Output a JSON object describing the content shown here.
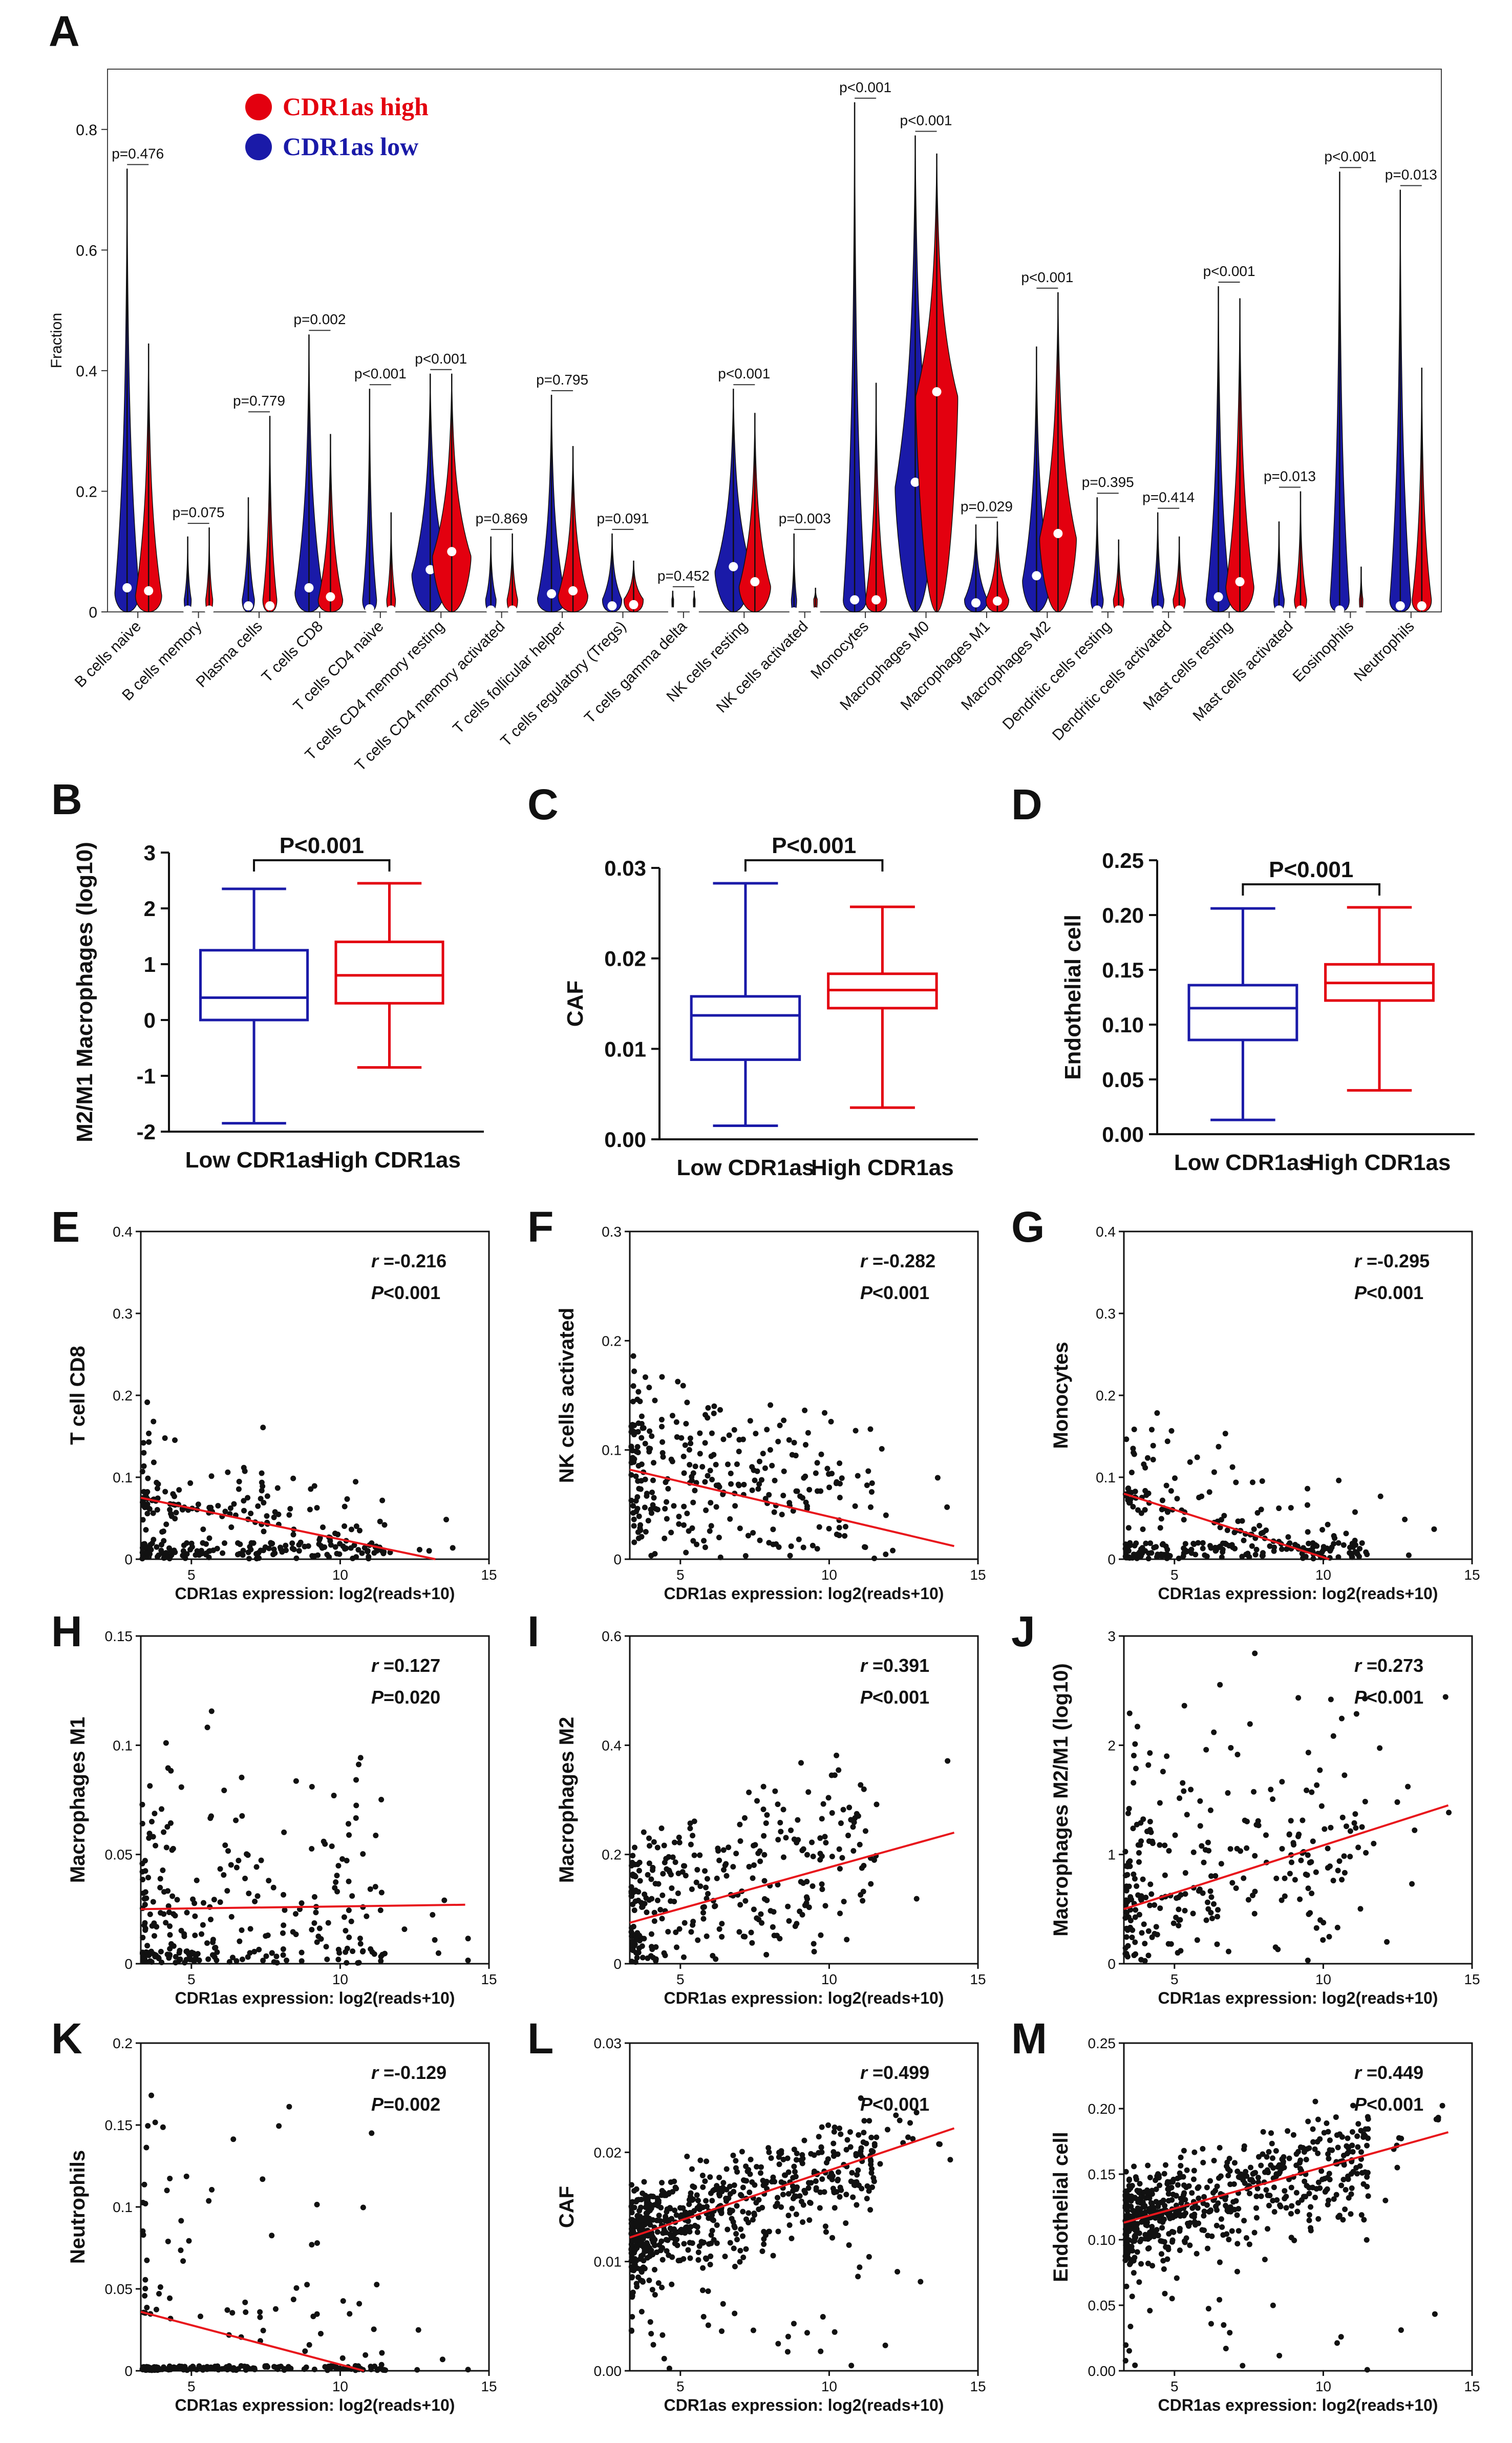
{
  "colors": {
    "high": "#e3000f",
    "low": "#1a1aa8",
    "fit": "#e8161c",
    "axis": "#111111"
  },
  "chart_data": [
    {
      "id": "A",
      "letter": "A",
      "type": "violin",
      "ylabel": "Fraction",
      "ylim": [
        0,
        0.9
      ],
      "yticks": [
        0,
        0.2,
        0.4,
        0.6,
        0.8
      ],
      "legend": [
        {
          "name": "CDR1as high",
          "color": "#e3000f"
        },
        {
          "name": "CDR1as low",
          "color": "#1a1aa8"
        }
      ],
      "categories": [
        {
          "name": "B cells naive",
          "pval": "p=0.476",
          "low": {
            "max": 0.735,
            "median": 0.04,
            "spread": 0.7
          },
          "high": {
            "max": 0.445,
            "median": 0.035,
            "spread": 0.75
          }
        },
        {
          "name": "B cells memory",
          "pval": "p=0.075",
          "low": {
            "max": 0.125,
            "median": 0.003,
            "spread": 0.2
          },
          "high": {
            "max": 0.14,
            "median": 0.003,
            "spread": 0.2
          }
        },
        {
          "name": "Plasma cells",
          "pval": "p=0.779",
          "low": {
            "max": 0.19,
            "median": 0.01,
            "spread": 0.35
          },
          "high": {
            "max": 0.325,
            "median": 0.01,
            "spread": 0.4
          }
        },
        {
          "name": "T cells CD8",
          "pval": "p=0.002",
          "low": {
            "max": 0.46,
            "median": 0.04,
            "spread": 0.8
          },
          "high": {
            "max": 0.295,
            "median": 0.025,
            "spread": 0.7
          }
        },
        {
          "name": "T cells CD4 naive",
          "pval": "p<0.001",
          "low": {
            "max": 0.37,
            "median": 0.005,
            "spread": 0.4
          },
          "high": {
            "max": 0.165,
            "median": 0.003,
            "spread": 0.25
          }
        },
        {
          "name": "T cells CD4 memory resting",
          "pval": "p<0.001",
          "low": {
            "max": 0.395,
            "median": 0.07,
            "spread": 1.05
          },
          "high": {
            "max": 0.395,
            "median": 0.1,
            "spread": 1.1
          }
        },
        {
          "name": "T cells CD4 memory activated",
          "pval": "p=0.869",
          "low": {
            "max": 0.125,
            "median": 0.003,
            "spread": 0.3
          },
          "high": {
            "max": 0.13,
            "median": 0.003,
            "spread": 0.3
          }
        },
        {
          "name": "T cells follicular helper",
          "pval": "p=0.795",
          "low": {
            "max": 0.36,
            "median": 0.03,
            "spread": 0.8
          },
          "high": {
            "max": 0.275,
            "median": 0.035,
            "spread": 0.85
          }
        },
        {
          "name": "T cells regulatory (Tregs)",
          "pval": "p=0.091",
          "low": {
            "max": 0.13,
            "median": 0.01,
            "spread": 0.55
          },
          "high": {
            "max": 0.085,
            "median": 0.012,
            "spread": 0.55
          }
        },
        {
          "name": "T cells gamma delta",
          "pval": "p=0.452",
          "low": {
            "max": 0.035,
            "median": 0.0,
            "spread": 0.05
          },
          "high": {
            "max": 0.035,
            "median": 0.0,
            "spread": 0.05
          }
        },
        {
          "name": "NK cells resting",
          "pval": "p<0.001",
          "low": {
            "max": 0.37,
            "median": 0.075,
            "spread": 1.05
          },
          "high": {
            "max": 0.33,
            "median": 0.05,
            "spread": 0.9
          }
        },
        {
          "name": "NK cells activated",
          "pval": "p=0.003",
          "low": {
            "max": 0.13,
            "median": 0.0,
            "spread": 0.15
          },
          "high": {
            "max": 0.04,
            "median": 0.0,
            "spread": 0.1
          }
        },
        {
          "name": "Monocytes",
          "pval": "p<0.001",
          "low": {
            "max": 0.845,
            "median": 0.02,
            "spread": 0.65
          },
          "high": {
            "max": 0.38,
            "median": 0.02,
            "spread": 0.6
          }
        },
        {
          "name": "Macrophages M0",
          "pval": "p<0.001",
          "low": {
            "max": 0.79,
            "median": 0.215,
            "spread": 1.15
          },
          "high": {
            "max": 0.76,
            "median": 0.365,
            "spread": 1.2
          }
        },
        {
          "name": "Macrophages M1",
          "pval": "p=0.029",
          "low": {
            "max": 0.145,
            "median": 0.015,
            "spread": 0.65
          },
          "high": {
            "max": 0.15,
            "median": 0.018,
            "spread": 0.65
          }
        },
        {
          "name": "Macrophages M2",
          "pval": "p<0.001",
          "low": {
            "max": 0.44,
            "median": 0.06,
            "spread": 0.8
          },
          "high": {
            "max": 0.53,
            "median": 0.13,
            "spread": 1.05
          }
        },
        {
          "name": "Dendritic cells resting",
          "pval": "p=0.395",
          "low": {
            "max": 0.19,
            "median": 0.003,
            "spread": 0.35
          },
          "high": {
            "max": 0.12,
            "median": 0.003,
            "spread": 0.3
          }
        },
        {
          "name": "Dendritic cells activated",
          "pval": "p=0.414",
          "low": {
            "max": 0.165,
            "median": 0.003,
            "spread": 0.35
          },
          "high": {
            "max": 0.125,
            "median": 0.003,
            "spread": 0.35
          }
        },
        {
          "name": "Mast cells resting",
          "pval": "p<0.001",
          "low": {
            "max": 0.54,
            "median": 0.025,
            "spread": 0.7
          },
          "high": {
            "max": 0.52,
            "median": 0.05,
            "spread": 0.8
          }
        },
        {
          "name": "Mast cells activated",
          "pval": "p=0.013",
          "low": {
            "max": 0.15,
            "median": 0.003,
            "spread": 0.3
          },
          "high": {
            "max": 0.2,
            "median": 0.003,
            "spread": 0.35
          }
        },
        {
          "name": "Eosinophils",
          "pval": "p<0.001",
          "low": {
            "max": 0.73,
            "median": 0.003,
            "spread": 0.55
          },
          "high": {
            "max": 0.075,
            "median": 0.0,
            "spread": 0.1
          }
        },
        {
          "name": "Neutrophils",
          "pval": "p=0.013",
          "low": {
            "max": 0.7,
            "median": 0.01,
            "spread": 0.6
          },
          "high": {
            "max": 0.405,
            "median": 0.01,
            "spread": 0.55
          }
        }
      ]
    },
    {
      "id": "B",
      "letter": "B",
      "type": "boxplot",
      "ylabel": "M2/M1 Macrophages (log10)",
      "ylim": [
        -2,
        3
      ],
      "yticks": [
        -2,
        -1,
        0,
        1,
        2,
        3
      ],
      "sig": "P<0.001",
      "groups": [
        {
          "label": "Low CDR1as",
          "color": "#1a1aa8",
          "min": -1.85,
          "q1": 0.0,
          "median": 0.4,
          "q3": 1.25,
          "max": 2.35
        },
        {
          "label": "High CDR1as",
          "color": "#e3000f",
          "min": -0.85,
          "q1": 0.3,
          "median": 0.8,
          "q3": 1.4,
          "max": 2.45
        }
      ]
    },
    {
      "id": "C",
      "letter": "C",
      "type": "boxplot",
      "ylabel": "CAF",
      "ylim": [
        0,
        0.03
      ],
      "yticks": [
        0.0,
        0.01,
        0.02,
        0.03
      ],
      "tick_decimals": 2,
      "sig": "P<0.001",
      "groups": [
        {
          "label": "Low CDR1as",
          "color": "#1a1aa8",
          "min": 0.0015,
          "q1": 0.0088,
          "median": 0.0137,
          "q3": 0.0158,
          "max": 0.0283
        },
        {
          "label": "High CDR1as",
          "color": "#e3000f",
          "min": 0.0035,
          "q1": 0.0145,
          "median": 0.0165,
          "q3": 0.0183,
          "max": 0.0257
        }
      ]
    },
    {
      "id": "D",
      "letter": "D",
      "type": "boxplot",
      "ylabel": "Endothelial cell",
      "ylim": [
        0,
        0.25
      ],
      "yticks": [
        0.0,
        0.05,
        0.1,
        0.15,
        0.2,
        0.25
      ],
      "tick_decimals": 2,
      "sig": "P<0.001",
      "groups": [
        {
          "label": "Low CDR1as",
          "color": "#1a1aa8",
          "min": 0.013,
          "q1": 0.086,
          "median": 0.115,
          "q3": 0.136,
          "max": 0.206
        },
        {
          "label": "High CDR1as",
          "color": "#e3000f",
          "min": 0.04,
          "q1": 0.122,
          "median": 0.138,
          "q3": 0.155,
          "max": 0.207
        }
      ]
    },
    {
      "id": "E",
      "letter": "E",
      "type": "scatter",
      "xlabel": "CDR1as expression: log2(reads+10)",
      "ylabel": "T cell CD8",
      "xlim": [
        3.3,
        15
      ],
      "xticks": [
        5,
        10,
        15
      ],
      "ylim": [
        0,
        0.4
      ],
      "yticks": [
        0,
        0.1,
        0.2,
        0.3,
        0.4
      ],
      "r_label": "r",
      "r_value": " =-0.216",
      "p_label": "P",
      "p_value": "<0.001",
      "fit": {
        "x": [
          3.3,
          13.2
        ],
        "y": [
          0.075,
          0.0
        ]
      },
      "n_points": 300,
      "shape": "decay",
      "seed": 11
    },
    {
      "id": "F",
      "letter": "F",
      "type": "scatter",
      "xlabel": "CDR1as expression: log2(reads+10)",
      "ylabel": "NK cells activated",
      "xlim": [
        3.3,
        15
      ],
      "xticks": [
        5,
        10,
        15
      ],
      "ylim": [
        0,
        0.3
      ],
      "yticks": [
        0,
        0.1,
        0.2,
        0.3
      ],
      "r_label": "r",
      "r_value": " =-0.282",
      "p_label": "P",
      "p_value": "<0.001",
      "fit": {
        "x": [
          3.3,
          14.2
        ],
        "y": [
          0.082,
          0.012
        ]
      },
      "n_points": 320,
      "shape": "band",
      "seed": 23
    },
    {
      "id": "G",
      "letter": "G",
      "type": "scatter",
      "xlabel": "CDR1as expression: log2(reads+10)",
      "ylabel": "Monocytes",
      "xlim": [
        3.3,
        15
      ],
      "xticks": [
        5,
        10,
        15
      ],
      "ylim": [
        0,
        0.4
      ],
      "yticks": [
        0,
        0.1,
        0.2,
        0.3,
        0.4
      ],
      "r_label": "r",
      "r_value": " =-0.295",
      "p_label": "P",
      "p_value": "<0.001",
      "fit": {
        "x": [
          3.3,
          10.2
        ],
        "y": [
          0.08,
          0.0
        ]
      },
      "n_points": 300,
      "shape": "decay",
      "seed": 37
    },
    {
      "id": "H",
      "letter": "H",
      "type": "scatter",
      "xlabel": "CDR1as expression: log2(reads+10)",
      "ylabel": "Macrophages M1",
      "xlim": [
        3.3,
        15
      ],
      "xticks": [
        5,
        10,
        15
      ],
      "ylim": [
        0,
        0.15
      ],
      "yticks": [
        0,
        0.05,
        0.1,
        0.15
      ],
      "r_label": "r",
      "r_value": " =0.127",
      "p_label": "P",
      "p_value": "=0.020",
      "fit": {
        "x": [
          3.3,
          14.2
        ],
        "y": [
          0.025,
          0.027
        ]
      },
      "n_points": 280,
      "shape": "flat",
      "seed": 41
    },
    {
      "id": "I",
      "letter": "I",
      "type": "scatter",
      "xlabel": "CDR1as expression: log2(reads+10)",
      "ylabel": "Macrophages M2",
      "xlim": [
        3.3,
        15
      ],
      "xticks": [
        5,
        10,
        15
      ],
      "ylim": [
        0,
        0.6
      ],
      "yticks": [
        0,
        0.2,
        0.4,
        0.6
      ],
      "r_label": "r",
      "r_value": " =0.391",
      "p_label": "P",
      "p_value": "<0.001",
      "fit": {
        "x": [
          3.3,
          14.2
        ],
        "y": [
          0.075,
          0.24
        ]
      },
      "n_points": 320,
      "shape": "rise",
      "seed": 53
    },
    {
      "id": "J",
      "letter": "J",
      "type": "scatter",
      "xlabel": "CDR1as expression: log2(reads+10)",
      "ylabel": "Macrophages M2/M1 (log10)",
      "xlim": [
        3.3,
        15
      ],
      "xticks": [
        5,
        10,
        15
      ],
      "ylim": [
        0,
        3
      ],
      "yticks": [
        0,
        1,
        2,
        3
      ],
      "r_label": "r",
      "r_value": " =0.273",
      "p_label": "P",
      "p_value": "<0.001",
      "fit": {
        "x": [
          3.3,
          14.2
        ],
        "y": [
          0.5,
          1.45
        ]
      },
      "n_points": 320,
      "shape": "wide",
      "seed": 67
    },
    {
      "id": "K",
      "letter": "K",
      "type": "scatter",
      "xlabel": "CDR1as expression: log2(reads+10)",
      "ylabel": "Neutrophils",
      "xlim": [
        3.3,
        15
      ],
      "xticks": [
        5,
        10,
        15
      ],
      "ylim": [
        0,
        0.2
      ],
      "yticks": [
        0,
        0.05,
        0.1,
        0.15,
        0.2
      ],
      "r_label": "r",
      "r_value": " =-0.129",
      "p_label": "P",
      "p_value": "=0.002",
      "fit": {
        "x": [
          3.3,
          10.8
        ],
        "y": [
          0.036,
          0.0
        ]
      },
      "n_points": 260,
      "shape": "zero",
      "seed": 79
    },
    {
      "id": "L",
      "letter": "L",
      "type": "scatter",
      "xlabel": "CDR1as expression: log2(reads+10)",
      "ylabel": "CAF",
      "xlim": [
        3.3,
        15
      ],
      "xticks": [
        5,
        10,
        15
      ],
      "ylim": [
        0,
        0.03
      ],
      "yticks": [
        0,
        0.01,
        0.02,
        0.03
      ],
      "tick_decimals": 2,
      "r_label": "r",
      "r_value": " =0.499",
      "p_label": "P",
      "p_value": "<0.001",
      "fit": {
        "x": [
          3.3,
          14.2
        ],
        "y": [
          0.0122,
          0.0222
        ]
      },
      "n_points": 650,
      "shape": "cloud",
      "seed": 83
    },
    {
      "id": "M",
      "letter": "M",
      "type": "scatter",
      "xlabel": "CDR1as expression: log2(reads+10)",
      "ylabel": "Endothelial cell",
      "xlim": [
        3.3,
        15
      ],
      "xticks": [
        5,
        10,
        15
      ],
      "ylim": [
        0,
        0.25
      ],
      "yticks": [
        0,
        0.05,
        0.1,
        0.15,
        0.2,
        0.25
      ],
      "tick_decimals": 2,
      "r_label": "r",
      "r_value": " =0.449",
      "p_label": "P",
      "p_value": "<0.001",
      "fit": {
        "x": [
          3.3,
          14.2
        ],
        "y": [
          0.113,
          0.182
        ]
      },
      "n_points": 650,
      "shape": "cloud",
      "seed": 97
    }
  ]
}
